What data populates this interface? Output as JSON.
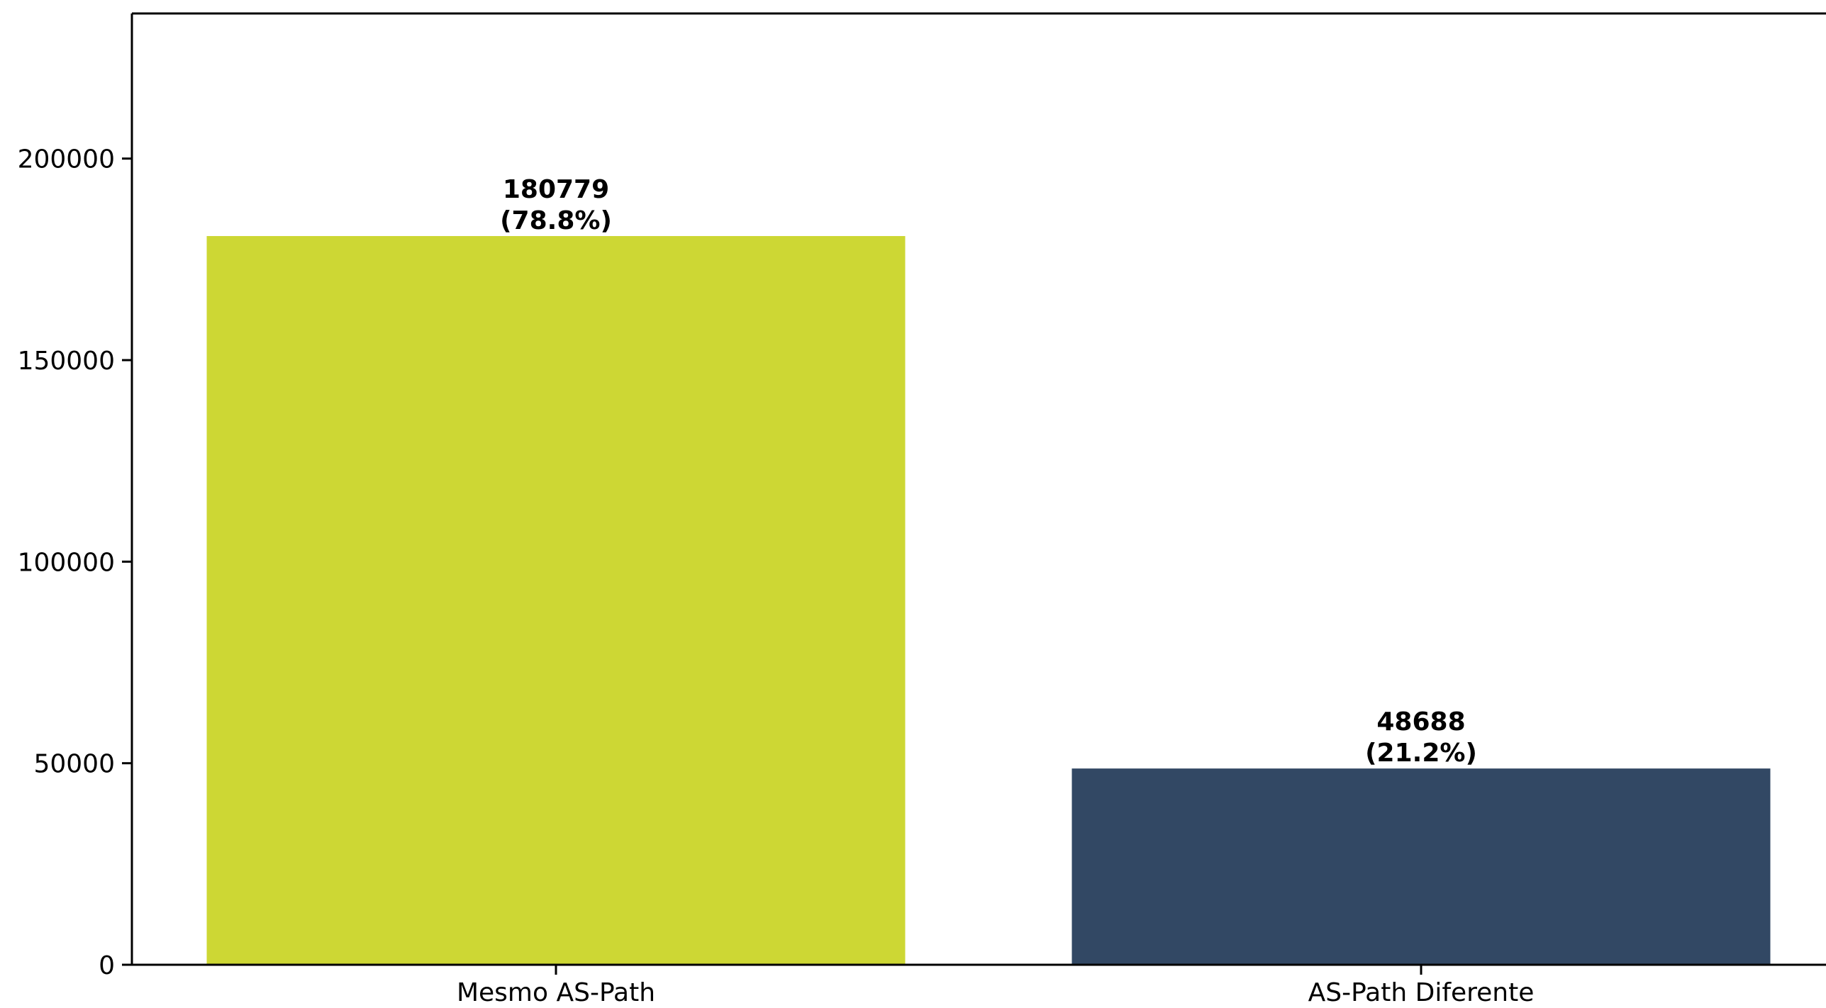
{
  "chart_data": {
    "type": "bar",
    "categories": [
      "Mesmo AS-Path",
      "AS-Path Diferente"
    ],
    "values": [
      180779,
      48688
    ],
    "value_labels": [
      "180779",
      "48688"
    ],
    "percent_labels": [
      "(78.8%)",
      "(21.2%)"
    ],
    "colors": [
      "#cdd734",
      "#324864"
    ],
    "ylim": [
      0,
      236000
    ],
    "yticks": [
      0,
      50000,
      100000,
      150000,
      200000
    ],
    "ytick_labels": [
      "0",
      "50000",
      "100000",
      "150000",
      "200000"
    ],
    "grid": false,
    "title": "",
    "xlabel": "",
    "ylabel": ""
  }
}
